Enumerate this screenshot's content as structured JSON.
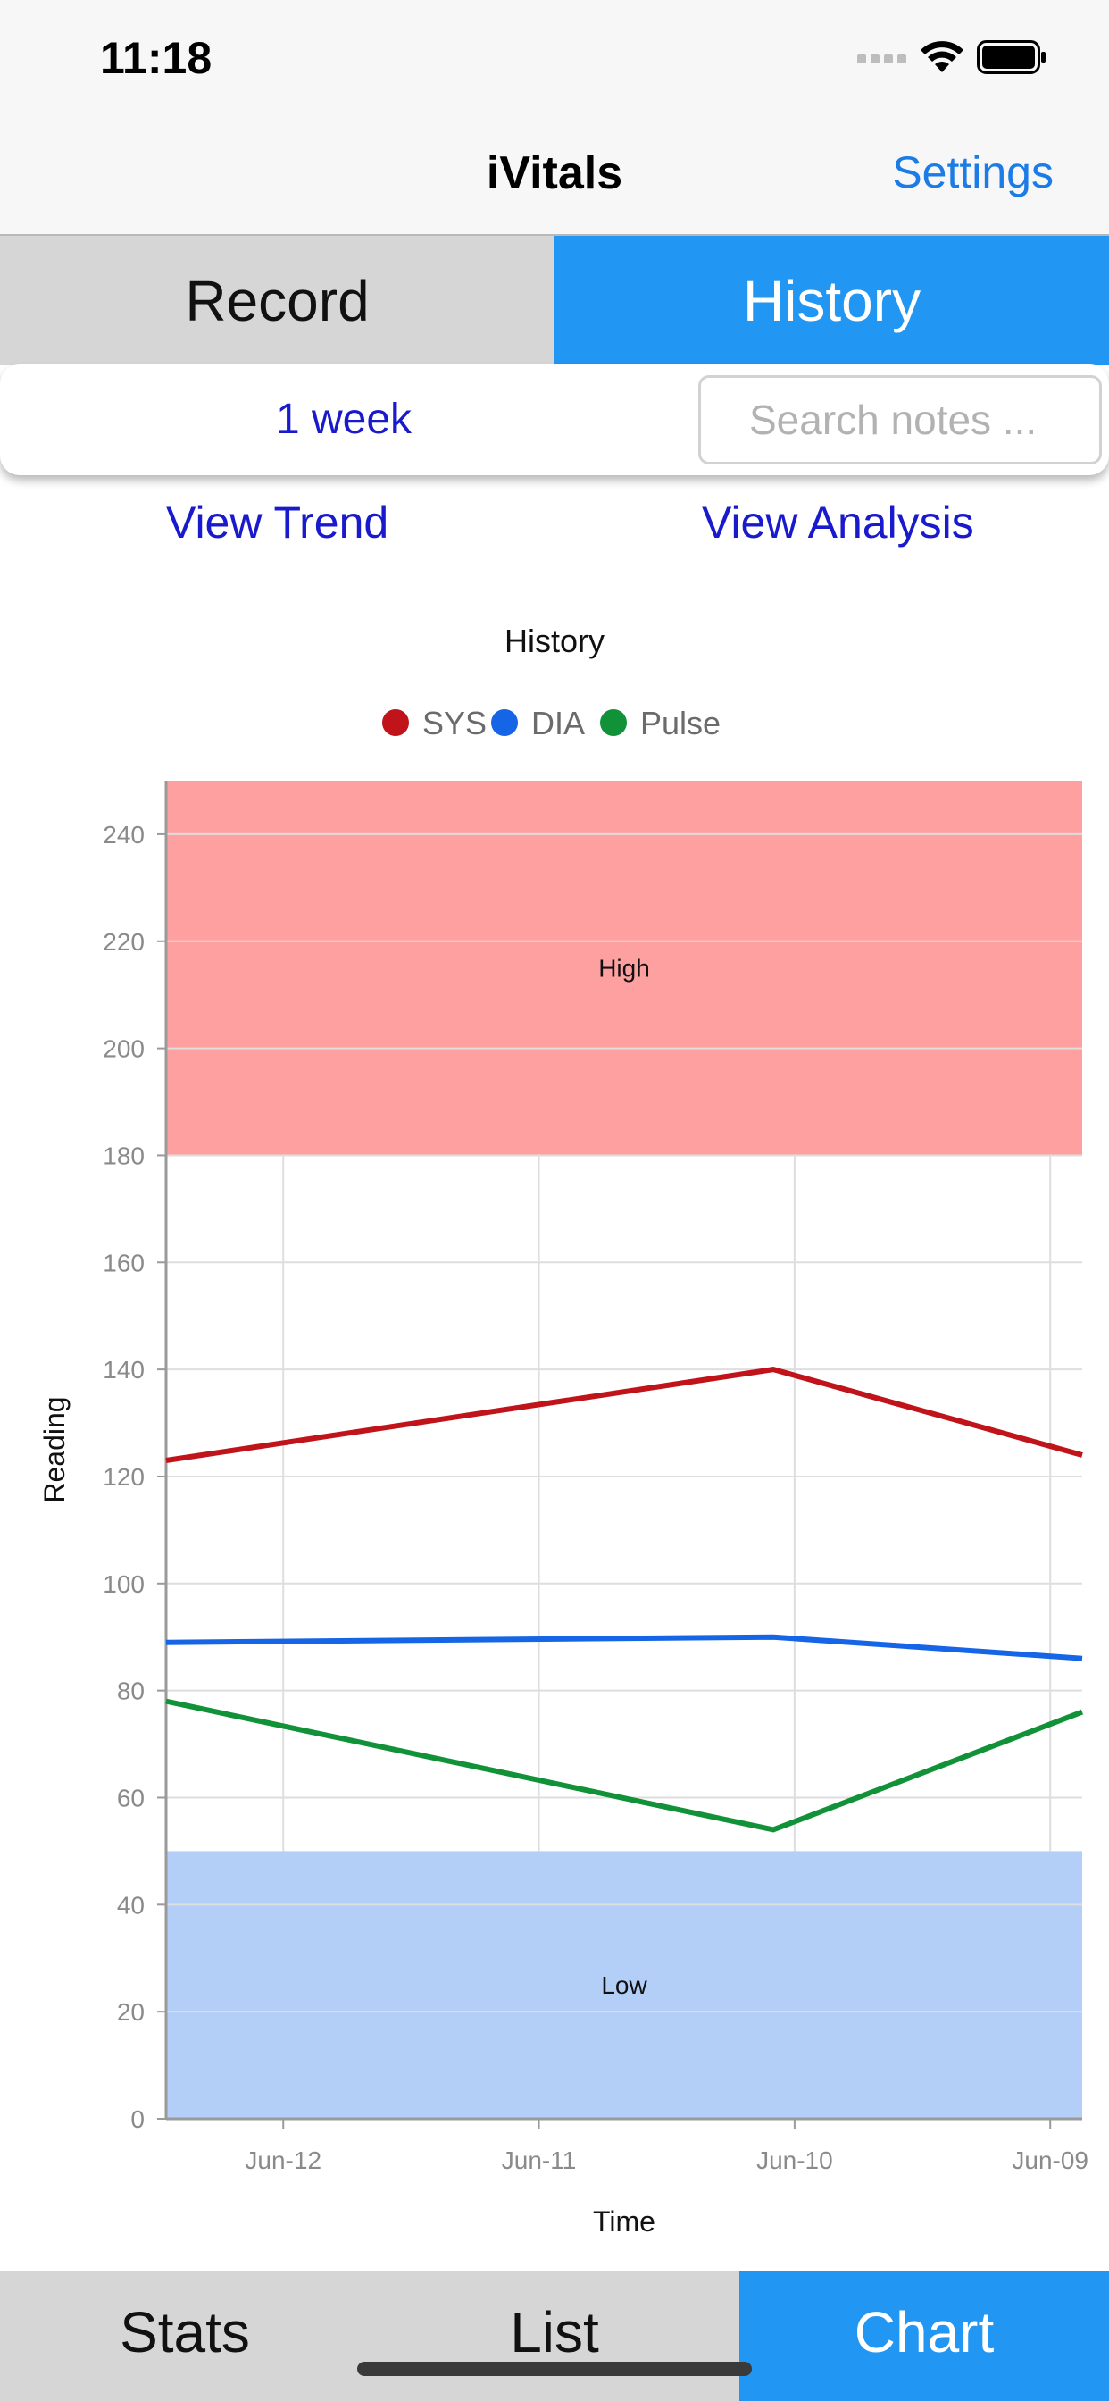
{
  "status": {
    "time": "11:18"
  },
  "nav": {
    "title": "iVitals",
    "settings_label": "Settings"
  },
  "top_segments": {
    "record_label": "Record",
    "history_label": "History"
  },
  "filter": {
    "period_label": "1 week",
    "search_placeholder": "Search notes ..."
  },
  "links": {
    "view_trend": "View Trend",
    "view_analysis": "View Analysis"
  },
  "bottom_segments": {
    "stats_label": "Stats",
    "list_label": "List",
    "chart_label": "Chart"
  },
  "colors": {
    "accent": "#2196f3",
    "link": "#1a1acd",
    "sys": "#c0141a",
    "dia": "#1565e6",
    "pulse": "#129238",
    "high_band": "#ffa0a0",
    "low_band": "#b3cff8"
  },
  "chart_data": {
    "type": "line",
    "title": "History",
    "xlabel": "Time",
    "ylabel": "Reading",
    "categories": [
      "Jun-12",
      "Jun-11",
      "Jun-10",
      "Jun-09"
    ],
    "ylim": [
      0,
      250
    ],
    "yticks": [
      0,
      20,
      40,
      60,
      80,
      100,
      120,
      140,
      160,
      180,
      200,
      220,
      240
    ],
    "grid": true,
    "legend_position": "top-center",
    "bands": [
      {
        "label": "High",
        "from": 180,
        "to": 250,
        "color": "#ffa0a0"
      },
      {
        "label": "Low",
        "from": 0,
        "to": 50,
        "color": "#b3cff8"
      }
    ],
    "series": [
      {
        "name": "SYS",
        "color": "#c0141a",
        "points": [
          [
            "2024-06-12T11:00",
            123
          ],
          [
            "2024-06-10T02:00",
            140
          ],
          [
            "2024-06-08T21:00",
            124
          ]
        ]
      },
      {
        "name": "DIA",
        "color": "#1565e6",
        "points": [
          [
            "2024-06-12T11:00",
            89
          ],
          [
            "2024-06-10T02:00",
            90
          ],
          [
            "2024-06-08T21:00",
            86
          ]
        ]
      },
      {
        "name": "Pulse",
        "color": "#129238",
        "points": [
          [
            "2024-06-12T11:00",
            78
          ],
          [
            "2024-06-10T02:00",
            54
          ],
          [
            "2024-06-08T21:00",
            76
          ]
        ]
      }
    ],
    "x_ticks": [
      {
        "label": "Jun-12",
        "time": "2024-06-12T00:00"
      },
      {
        "label": "Jun-11",
        "time": "2024-06-11T00:00"
      },
      {
        "label": "Jun-10",
        "time": "2024-06-10T00:00"
      },
      {
        "label": "Jun-09",
        "time": "2024-06-09T00:00"
      }
    ],
    "x_range": [
      "2024-06-12T11:00",
      "2024-06-08T21:00"
    ]
  }
}
